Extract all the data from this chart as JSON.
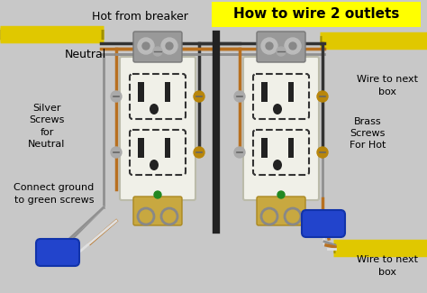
{
  "bg_color": "#c8c8c8",
  "title": "How to wire 2 outlets",
  "title_bg": "#ffff00",
  "title_color": "#000000",
  "title_fontsize": 11,
  "label_hot": "Hot from breaker",
  "label_neutral": "Neutral",
  "label_silver": "Silver\nScrews\nfor\nNeutral",
  "label_brass": "Brass\nScrews\nFor Hot",
  "label_ground": "Connect ground\nto green screws",
  "label_wire_next1": "Wire to next\nbox",
  "label_wire_next2": "Wire to next\nbox",
  "copper_color": "#b87020",
  "gray_color": "#909090",
  "white_wire": "#e0e0e0",
  "yellow_cable": "#e0c800",
  "blue_conn": "#2244cc",
  "black_wire": "#333333",
  "outlet_body": "#f0f0e8",
  "silver_screw": "#aaaaaa",
  "brass_screw": "#b8860b",
  "green_screw": "#228822",
  "bracket_color": "#909090"
}
